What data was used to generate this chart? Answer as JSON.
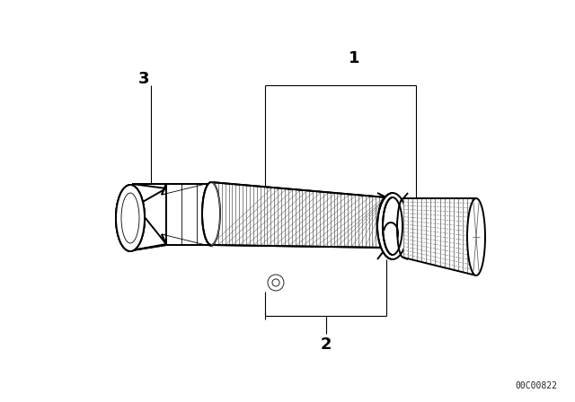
{
  "background_color": "#ffffff",
  "fig_width": 6.4,
  "fig_height": 4.48,
  "dpi": 100,
  "label_1": "1",
  "label_2": "2",
  "label_3": "3",
  "watermark": "00C00822",
  "line_color": "#000000",
  "lw_main": 1.4,
  "lw_thin": 0.6,
  "lw_leader": 0.8
}
